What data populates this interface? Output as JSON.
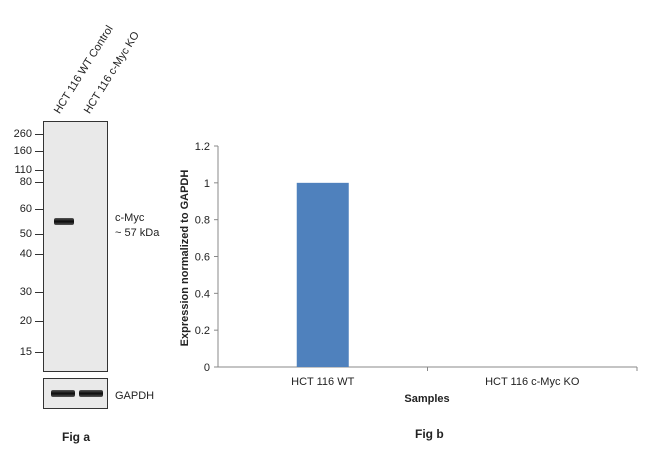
{
  "fig_a": {
    "lane_labels": [
      "HCT 116 WT Control",
      "HCT 116 c-Myc KO"
    ],
    "mw_markers": [
      "260",
      "160",
      "110",
      "80",
      "60",
      "50",
      "40",
      "30",
      "20",
      "15"
    ],
    "target_label": "c-Myc",
    "target_size": "~ 57 kDa",
    "loading_label": "GAPDH",
    "caption": "Fig a"
  },
  "fig_b": {
    "caption": "Fig b"
  },
  "chart_data": {
    "type": "bar",
    "categories": [
      "HCT 116 WT",
      "HCT 116 c-Myc  KO"
    ],
    "values": [
      1,
      0
    ],
    "title": "",
    "xlabel": "Samples",
    "ylabel": "Expression  normalized to GAPDH",
    "ylim": [
      0,
      1.2
    ],
    "yticks": [
      "0",
      "0.2",
      "0.4",
      "0.6",
      "0.8",
      "1",
      "1.2"
    ],
    "bar_color": "#4f81bd",
    "grid": false
  }
}
